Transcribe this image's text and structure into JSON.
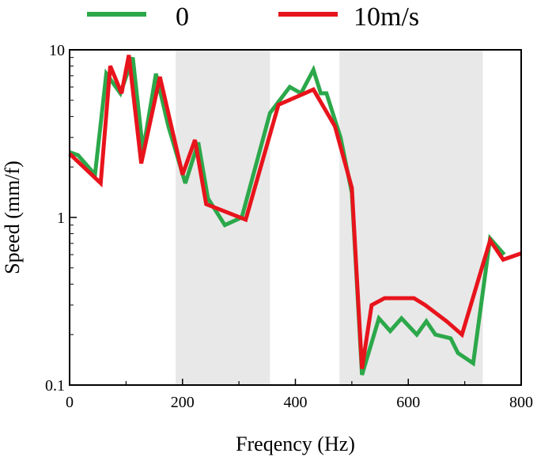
{
  "chart_data": {
    "type": "line",
    "title": "",
    "xlabel": "Freqency (Hz)",
    "ylabel": "Speed (mm/f)",
    "xlim": [
      0,
      800
    ],
    "ylim": [
      0.1,
      10
    ],
    "yscale": "log",
    "x_ticks": [
      0,
      200,
      400,
      600,
      800
    ],
    "x_tick_labels": [
      "0",
      "200",
      "400",
      "600",
      "800"
    ],
    "y_ticks": [
      0.1,
      1,
      10
    ],
    "y_tick_labels": [
      "0.1",
      "1",
      "10"
    ],
    "grid": false,
    "legend_position": "top",
    "shaded_bands": [
      [
        188,
        355
      ],
      [
        478,
        732
      ]
    ],
    "band_color": "#e8e8e8",
    "series": [
      {
        "name": "0",
        "color": "#2ca84a",
        "points": [
          [
            0,
            2.45
          ],
          [
            15,
            2.35
          ],
          [
            45,
            1.8
          ],
          [
            65,
            7.2
          ],
          [
            90,
            5.5
          ],
          [
            112,
            9.0
          ],
          [
            130,
            2.5
          ],
          [
            153,
            7.2
          ],
          [
            175,
            3.5
          ],
          [
            205,
            1.6
          ],
          [
            228,
            2.8
          ],
          [
            245,
            1.3
          ],
          [
            275,
            0.9
          ],
          [
            305,
            1.0
          ],
          [
            355,
            4.2
          ],
          [
            390,
            6.0
          ],
          [
            410,
            5.5
          ],
          [
            432,
            7.6
          ],
          [
            445,
            5.5
          ],
          [
            455,
            5.5
          ],
          [
            480,
            3.0
          ],
          [
            500,
            1.4
          ],
          [
            518,
            0.115
          ],
          [
            548,
            0.25
          ],
          [
            568,
            0.21
          ],
          [
            588,
            0.25
          ],
          [
            615,
            0.2
          ],
          [
            632,
            0.24
          ],
          [
            648,
            0.2
          ],
          [
            675,
            0.19
          ],
          [
            688,
            0.155
          ],
          [
            715,
            0.135
          ],
          [
            745,
            0.75
          ],
          [
            770,
            0.6
          ]
        ]
      },
      {
        "name": "10m/s",
        "color": "#e8141c",
        "points": [
          [
            0,
            2.4
          ],
          [
            55,
            1.6
          ],
          [
            72,
            8.0
          ],
          [
            92,
            5.5
          ],
          [
            105,
            9.3
          ],
          [
            127,
            2.1
          ],
          [
            160,
            6.9
          ],
          [
            200,
            1.8
          ],
          [
            222,
            2.9
          ],
          [
            242,
            1.2
          ],
          [
            312,
            0.97
          ],
          [
            370,
            4.7
          ],
          [
            432,
            5.8
          ],
          [
            470,
            3.5
          ],
          [
            500,
            1.5
          ],
          [
            518,
            0.125
          ],
          [
            535,
            0.3
          ],
          [
            558,
            0.33
          ],
          [
            610,
            0.33
          ],
          [
            630,
            0.3
          ],
          [
            668,
            0.24
          ],
          [
            695,
            0.2
          ],
          [
            745,
            0.73
          ],
          [
            768,
            0.56
          ],
          [
            800,
            0.61
          ]
        ]
      }
    ]
  }
}
